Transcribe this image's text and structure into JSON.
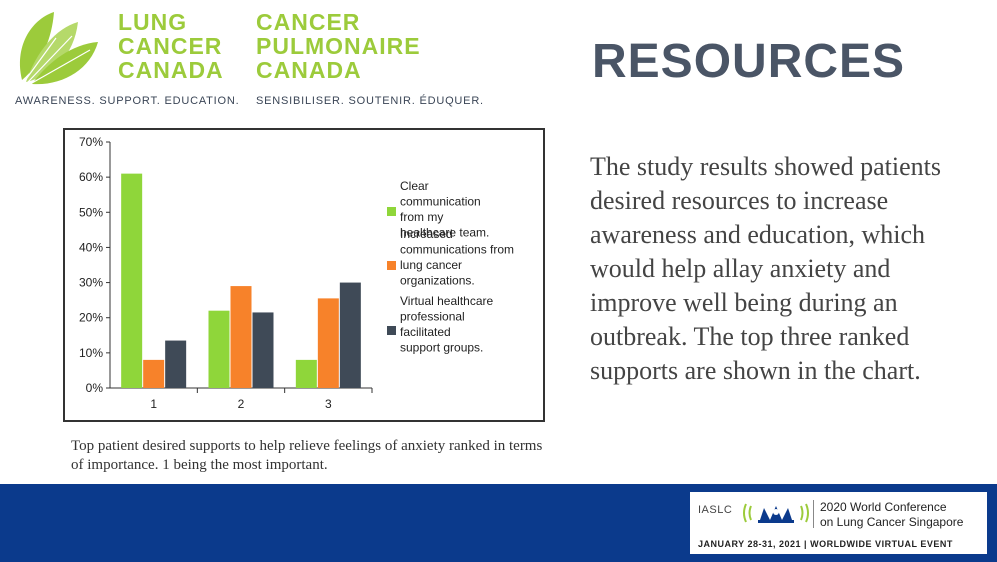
{
  "logo": {
    "english": [
      "LUNG",
      "CANCER",
      "CANADA"
    ],
    "french": [
      "CANCER",
      "PULMONAIRE",
      "CANADA"
    ],
    "tagline_en": "AWARENESS. SUPPORT. EDUCATION.",
    "tagline_fr": "SENSIBILISER. SOUTENIR. ÉDUQUER.",
    "color": "#9ccb3b"
  },
  "title": "RESOURCES",
  "body_text": "The study results showed patients desired resources to increase awareness and education, which would help allay anxiety and improve well being during an outbreak. The top three ranked supports are shown in the chart.",
  "caption": "Top patient desired supports to help relieve feelings of anxiety ranked in terms of importance. 1 being the most important.",
  "chart_data": {
    "type": "bar",
    "categories": [
      "1",
      "2",
      "3"
    ],
    "series": [
      {
        "name": "Clear communication from my healthcare team.",
        "color": "#8fd63a",
        "values": [
          61,
          22,
          8
        ]
      },
      {
        "name": "Increased communications from lung cancer organizations.",
        "color": "#f7822a",
        "values": [
          8,
          29,
          25.5
        ]
      },
      {
        "name": "Virtual healthcare professional facilitated support groups.",
        "color": "#3f4a57",
        "values": [
          13.5,
          21.5,
          30
        ]
      }
    ],
    "ylim": [
      0,
      70
    ],
    "yticks": [
      "0%",
      "10%",
      "20%",
      "30%",
      "40%",
      "50%",
      "60%",
      "70%"
    ],
    "legend": "right",
    "grid": false
  },
  "footer": {
    "org": "IASLC",
    "conference_line1": "2020 World Conference",
    "conference_line2": "on Lung Cancer Singapore",
    "dates": "JANUARY 28-31, 2021 | WORLDWIDE VIRTUAL EVENT",
    "background": "#0b3a8c"
  }
}
